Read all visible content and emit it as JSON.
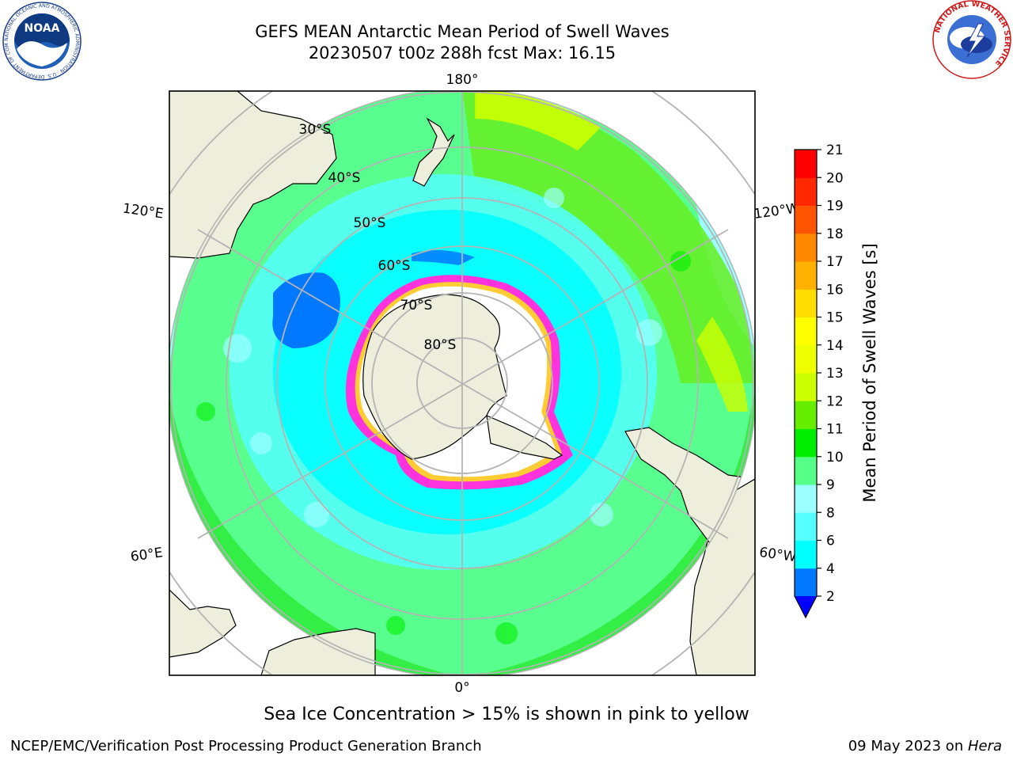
{
  "title": {
    "line1": "GEFS MEAN Antarctic Mean Period of Swell Waves",
    "line2": "20230507 t00z 288h fcst   Max: 16.15"
  },
  "logos": {
    "left": "noaa-logo",
    "right": "national-weather-service-logo",
    "noaa_text": "NOAA",
    "noaa_ring_text": "NATIONAL OCEANIC AND ATMOSPHERIC ADMINISTRATION · U.S. DEPARTMENT OF COMMERCE",
    "nws_ring_text": "NATIONAL WEATHER SERVICE"
  },
  "map": {
    "projection": "south-polar-stereographic",
    "longitude_labels": [
      "180°",
      "120°E",
      "120°W",
      "60°E",
      "60°W",
      "0°"
    ],
    "latitude_labels": [
      "30°S",
      "40°S",
      "50°S",
      "60°S",
      "70°S",
      "80°S"
    ],
    "colors": {
      "land": "#eeeedc",
      "ice": "#ffffff",
      "ice_edge_pink": "#ff33dd",
      "ice_edge_yellow": "#ffcc33",
      "gridline": "#b4b4b4"
    }
  },
  "colorbar": {
    "label": "Mean Period of Swell Waves [s]",
    "ticks": [
      "2",
      "4",
      "6",
      "8",
      "9",
      "10",
      "11",
      "12",
      "13",
      "14",
      "15",
      "16",
      "17",
      "18",
      "19",
      "20",
      "21"
    ],
    "under_color": "#0000ff",
    "colors": [
      "#0078ff",
      "#00ffff",
      "#55ffff",
      "#9cffff",
      "#55ff88",
      "#00ee00",
      "#66ee00",
      "#ccff00",
      "#eeff00",
      "#ffff00",
      "#ffdd00",
      "#ffb000",
      "#ff8800",
      "#ff5500",
      "#ff2800",
      "#ff0000"
    ]
  },
  "caption": "Sea Ice Concentration > 15% is shown in pink to yellow",
  "footer": {
    "left": "NCEP/EMC/Verification Post Processing Product Generation Branch",
    "date": "09 May 2023 on ",
    "host": "Hera"
  }
}
